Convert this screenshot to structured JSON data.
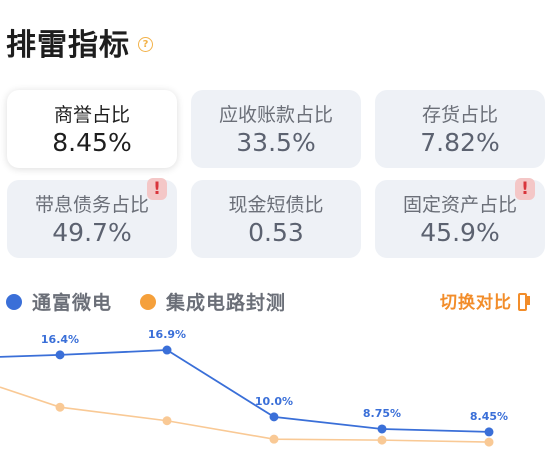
{
  "header": {
    "title": "排雷指标",
    "help_icon": "?"
  },
  "cards": [
    {
      "label": "商誉占比",
      "value": "8.45%",
      "selected": true,
      "warning": false
    },
    {
      "label": "应收账款占比",
      "value": "33.5%",
      "selected": false,
      "warning": false
    },
    {
      "label": "存货占比",
      "value": "7.82%",
      "selected": false,
      "warning": false
    },
    {
      "label": "带息债务占比",
      "value": "49.7%",
      "selected": false,
      "warning": true,
      "warning_icon": "!"
    },
    {
      "label": "现金短债比",
      "value": "0.53",
      "selected": false,
      "warning": false
    },
    {
      "label": "固定资产占比",
      "value": "45.9%",
      "selected": false,
      "warning": true,
      "warning_icon": "!"
    }
  ],
  "legend": [
    {
      "name": "通富微电",
      "color": "#3a6fd8"
    },
    {
      "name": "集成电路封测",
      "color": "#f5a03b"
    }
  ],
  "switch_compare": {
    "label": "切换对比",
    "icon": "switch-icon"
  },
  "chart_data": {
    "type": "line",
    "series": [
      {
        "name": "通富微电",
        "color": "#3a6fd8",
        "values": [
          16.4,
          16.9,
          10.0,
          8.75,
          8.45
        ],
        "labels": [
          "16.4%",
          "16.9%",
          "10.0%",
          "8.75%",
          "8.45%"
        ]
      },
      {
        "name": "集成电路封测",
        "color": "#f9c995",
        "values": [
          11.0,
          9.6,
          7.7,
          7.6,
          7.4
        ]
      }
    ],
    "ylim": [
      4,
      20
    ]
  }
}
